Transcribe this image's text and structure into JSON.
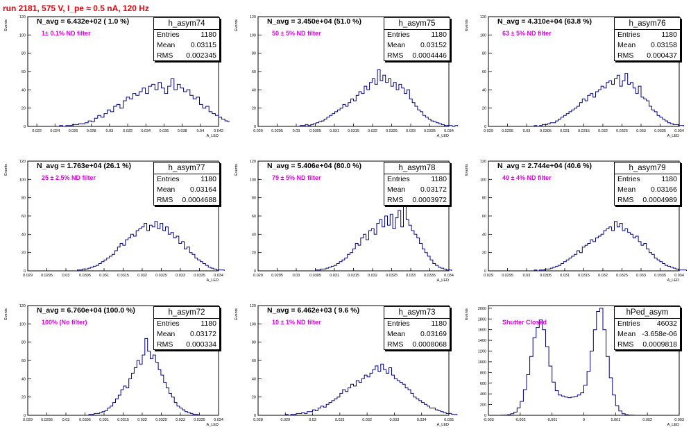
{
  "run_title": "run 2181,   575 V, I_pe ≈ 0.5 nA, 120 Hz",
  "stats_labels": {
    "entries": "Entries",
    "mean": "Mean",
    "rms": "RMS"
  },
  "panels": [
    {
      "hist_name": "h_asym74",
      "n_avg": "N_avg = 6.432e+02 ( 1.0 %)",
      "filter": "1± 0.1% ND filter",
      "entries": "1180",
      "mean": "0.03115",
      "rms": "0.002345",
      "ylabel": "Events",
      "xlabel": "A_LED"
    },
    {
      "hist_name": "h_asym75",
      "n_avg": "N_avg = 3.450e+04 (51.0 %)",
      "filter": "50 ± 5% ND filter",
      "entries": "1180",
      "mean": "0.03152",
      "rms": "0.0004446",
      "ylabel": "Events",
      "xlabel": "A_LED"
    },
    {
      "hist_name": "h_asym76",
      "n_avg": "N_avg = 4.310e+04 (63.8 %)",
      "filter": "63 ± 5% ND filter",
      "entries": "1180",
      "mean": "0.03158",
      "rms": "0.000437",
      "ylabel": "Events",
      "xlabel": "A_LED"
    },
    {
      "hist_name": "h_asym77",
      "n_avg": "N_avg = 1.763e+04 (26.1 %)",
      "filter": "25 ± 2.5% ND filter",
      "entries": "1180",
      "mean": "0.03164",
      "rms": "0.0004688",
      "ylabel": "Events",
      "xlabel": "A_LED"
    },
    {
      "hist_name": "h_asym78",
      "n_avg": "N_avg = 5.406e+04 (80.0 %)",
      "filter": "79 ± 5% ND filter",
      "entries": "1180",
      "mean": "0.03172",
      "rms": "0.0003972",
      "ylabel": "Events",
      "xlabel": "A_LED"
    },
    {
      "hist_name": "h_asym79",
      "n_avg": "N_avg = 2.744e+04 (40.6 %)",
      "filter": "40 ± 4% ND filter",
      "entries": "1180",
      "mean": "0.03166",
      "rms": "0.0004989",
      "ylabel": "Events",
      "xlabel": "A_LED"
    },
    {
      "hist_name": "h_asym72",
      "n_avg": "N_avg = 6.760e+04 (100.0 %)",
      "filter": "100% (No filter)",
      "entries": "1180",
      "mean": "0.03172",
      "rms": "0.000334",
      "ylabel": "Events",
      "xlabel": "A_LED"
    },
    {
      "hist_name": "h_asym73",
      "n_avg": "N_avg = 6.462e+03 ( 9.6 %)",
      "filter": "10 ± 1% ND filter",
      "entries": "1180",
      "mean": "0.03169",
      "rms": "0.0008068",
      "ylabel": "Events",
      "xlabel": "A_LED"
    },
    {
      "hist_name": "hPed_asym",
      "n_avg": "",
      "filter": "Shutter Closed",
      "entries": "46032",
      "mean": "-3.658e-06",
      "rms": "0.0009818",
      "ylabel": "Events",
      "xlabel": "A_LED"
    }
  ],
  "chart_data": [
    {
      "type": "histogram",
      "title": "h_asym74",
      "ylabel": "Events",
      "xlabel": "A_LED",
      "line_color": "#00007f",
      "xlim": [
        0.021,
        0.042
      ],
      "ylim": [
        0,
        120
      ],
      "xticks": [
        0.022,
        0.024,
        0.026,
        0.028,
        0.03,
        0.032,
        0.034,
        0.036,
        0.038,
        0.04,
        0.042
      ],
      "xtick_labels": [
        "0.022",
        "0.024",
        "0.026",
        "0.028",
        "0.03",
        "0.032",
        "0.034",
        "0.036",
        "0.038",
        "0.04",
        "0.042"
      ],
      "yticks": [
        0,
        20,
        40,
        60,
        80,
        100,
        120
      ],
      "bins": {
        "start": 0.0245,
        "width": 0.00035,
        "values": [
          1,
          0,
          1,
          1,
          2,
          2,
          3,
          3,
          4,
          6,
          5,
          9,
          12,
          10,
          14,
          18,
          16,
          22,
          24,
          20,
          28,
          32,
          30,
          36,
          34,
          38,
          42,
          36,
          44,
          46,
          40,
          48,
          42,
          36,
          44,
          52,
          40,
          46,
          42,
          38,
          40,
          34,
          30,
          32,
          24,
          20,
          22,
          16,
          14,
          12,
          10,
          8,
          6,
          5,
          4,
          3,
          2,
          2,
          1,
          1,
          1,
          0,
          1,
          0,
          0,
          1
        ]
      }
    },
    {
      "type": "histogram",
      "title": "h_asym75",
      "ylabel": "Events",
      "xlabel": "A_LED",
      "line_color": "#00007f",
      "xlim": [
        0.029,
        0.034
      ],
      "ylim": [
        0,
        120
      ],
      "xticks": [
        0.029,
        0.0295,
        0.03,
        0.0305,
        0.031,
        0.0315,
        0.032,
        0.0325,
        0.033,
        0.0335,
        0.034
      ],
      "xtick_labels": [
        "0.029",
        "0.0295",
        "0.03",
        "0.0305",
        "0.031",
        "0.0315",
        "0.032",
        "0.0325",
        "0.033",
        "0.0335",
        "0.034"
      ],
      "yticks": [
        0,
        20,
        40,
        60,
        80,
        100,
        120
      ],
      "bins": {
        "start": 0.0301,
        "width": 7e-05,
        "values": [
          1,
          1,
          2,
          1,
          2,
          3,
          4,
          5,
          6,
          8,
          10,
          12,
          14,
          16,
          18,
          20,
          24,
          22,
          26,
          30,
          28,
          34,
          38,
          36,
          44,
          40,
          48,
          52,
          46,
          62,
          50,
          56,
          48,
          52,
          44,
          48,
          40,
          46,
          42,
          36,
          40,
          30,
          26,
          22,
          18,
          16,
          12,
          10,
          8,
          6,
          5,
          4,
          3,
          2,
          1,
          1,
          1,
          0,
          1
        ]
      }
    },
    {
      "type": "histogram",
      "title": "h_asym76",
      "ylabel": "Events",
      "xlabel": "A_LED",
      "line_color": "#00007f",
      "xlim": [
        0.029,
        0.034
      ],
      "ylim": [
        0,
        120
      ],
      "xticks": [
        0.029,
        0.0295,
        0.03,
        0.0305,
        0.031,
        0.0315,
        0.032,
        0.0325,
        0.033,
        0.0335,
        0.034
      ],
      "xtick_labels": [
        "0.029",
        "0.0295",
        "0.03",
        "0.0305",
        "0.031",
        "0.0315",
        "0.032",
        "0.0325",
        "0.033",
        "0.0335",
        "0.034"
      ],
      "yticks": [
        0,
        20,
        40,
        60,
        80,
        100,
        120
      ],
      "bins": {
        "start": 0.0302,
        "width": 7e-05,
        "values": [
          1,
          0,
          1,
          2,
          2,
          3,
          4,
          4,
          6,
          8,
          10,
          12,
          14,
          16,
          18,
          20,
          22,
          26,
          30,
          28,
          34,
          36,
          32,
          38,
          40,
          44,
          42,
          48,
          50,
          46,
          52,
          56,
          44,
          50,
          58,
          46,
          48,
          42,
          36,
          44,
          32,
          30,
          28,
          22,
          18,
          16,
          12,
          10,
          8,
          6,
          4,
          3,
          2,
          2,
          1,
          1
        ]
      }
    },
    {
      "type": "histogram",
      "title": "h_asym77",
      "ylabel": "Events",
      "xlabel": "A_LED",
      "line_color": "#00007f",
      "xlim": [
        0.029,
        0.034
      ],
      "ylim": [
        0,
        120
      ],
      "xticks": [
        0.029,
        0.0295,
        0.03,
        0.0305,
        0.031,
        0.0315,
        0.032,
        0.0325,
        0.033,
        0.0335,
        0.034
      ],
      "xtick_labels": [
        "0.029",
        "0.0295",
        "0.03",
        "0.0305",
        "0.031",
        "0.0315",
        "0.032",
        "0.0325",
        "0.033",
        "0.0335",
        "0.034"
      ],
      "yticks": [
        0,
        20,
        40,
        60,
        80,
        100,
        120
      ],
      "bins": {
        "start": 0.0303,
        "width": 7e-05,
        "values": [
          1,
          1,
          2,
          2,
          3,
          4,
          5,
          6,
          8,
          10,
          12,
          14,
          16,
          18,
          22,
          26,
          30,
          28,
          34,
          36,
          40,
          38,
          44,
          46,
          48,
          52,
          44,
          50,
          48,
          54,
          46,
          52,
          44,
          48,
          40,
          42,
          36,
          38,
          30,
          32,
          24,
          26,
          20,
          18,
          14,
          12,
          10,
          8,
          6,
          4,
          3,
          2,
          1,
          1,
          1
        ]
      }
    },
    {
      "type": "histogram",
      "title": "h_asym78",
      "ylabel": "Events",
      "xlabel": "A_LED",
      "line_color": "#00007f",
      "xlim": [
        0.029,
        0.034
      ],
      "ylim": [
        0,
        120
      ],
      "xticks": [
        0.029,
        0.0295,
        0.03,
        0.0305,
        0.031,
        0.0315,
        0.032,
        0.0325,
        0.033,
        0.0335,
        0.034
      ],
      "xtick_labels": [
        "0.029",
        "0.0295",
        "0.03",
        "0.0305",
        "0.031",
        "0.0315",
        "0.032",
        "0.0325",
        "0.033",
        "0.0335",
        "0.034"
      ],
      "yticks": [
        0,
        20,
        40,
        60,
        80,
        100,
        120
      ],
      "bins": {
        "start": 0.0305,
        "width": 7e-05,
        "values": [
          1,
          1,
          2,
          2,
          3,
          4,
          5,
          6,
          8,
          10,
          12,
          14,
          18,
          20,
          24,
          30,
          28,
          36,
          40,
          34,
          44,
          46,
          40,
          52,
          56,
          48,
          60,
          50,
          62,
          46,
          58,
          66,
          48,
          74,
          56,
          50,
          44,
          40,
          36,
          30,
          24,
          20,
          16,
          12,
          8,
          6,
          4,
          3,
          2,
          1,
          1
        ]
      }
    },
    {
      "type": "histogram",
      "title": "h_asym79",
      "ylabel": "Events",
      "xlabel": "A_LED",
      "line_color": "#00007f",
      "xlim": [
        0.029,
        0.034
      ],
      "ylim": [
        0,
        120
      ],
      "xticks": [
        0.029,
        0.0295,
        0.03,
        0.0305,
        0.031,
        0.0315,
        0.032,
        0.0325,
        0.033,
        0.0335,
        0.034
      ],
      "xtick_labels": [
        "0.029",
        "0.0295",
        "0.03",
        "0.0305",
        "0.031",
        "0.0315",
        "0.032",
        "0.0325",
        "0.033",
        "0.0335",
        "0.034"
      ],
      "yticks": [
        0,
        20,
        40,
        60,
        80,
        100,
        120
      ],
      "bins": {
        "start": 0.0302,
        "width": 7e-05,
        "values": [
          1,
          0,
          1,
          1,
          2,
          2,
          3,
          4,
          5,
          6,
          8,
          10,
          12,
          14,
          16,
          18,
          22,
          20,
          26,
          28,
          30,
          34,
          32,
          36,
          38,
          40,
          44,
          46,
          48,
          44,
          54,
          48,
          52,
          44,
          46,
          42,
          40,
          36,
          38,
          32,
          28,
          30,
          24,
          20,
          18,
          14,
          12,
          10,
          8,
          6,
          5,
          4,
          3,
          2,
          1,
          1,
          1
        ]
      }
    },
    {
      "type": "histogram",
      "title": "h_asym72",
      "ylabel": "Events",
      "xlabel": "A_LED",
      "line_color": "#00007f",
      "xlim": [
        0.029,
        0.034
      ],
      "ylim": [
        0,
        120
      ],
      "xticks": [
        0.029,
        0.0295,
        0.03,
        0.0305,
        0.031,
        0.0315,
        0.032,
        0.0325,
        0.033,
        0.0335,
        0.034
      ],
      "xtick_labels": [
        "0.029",
        "0.0295",
        "0.03",
        "0.0305",
        "0.031",
        "0.0315",
        "0.032",
        "0.0325",
        "0.033",
        "0.0335",
        "0.034"
      ],
      "yticks": [
        0,
        20,
        40,
        60,
        80,
        100,
        120
      ],
      "bins": {
        "start": 0.0306,
        "width": 7e-05,
        "values": [
          1,
          1,
          2,
          2,
          3,
          4,
          5,
          8,
          10,
          14,
          18,
          22,
          28,
          32,
          30,
          40,
          46,
          52,
          60,
          56,
          66,
          84,
          70,
          62,
          66,
          58,
          50,
          44,
          36,
          30,
          24,
          20,
          14,
          10,
          8,
          6,
          4,
          3,
          2,
          1,
          1
        ]
      }
    },
    {
      "type": "histogram",
      "title": "h_asym73",
      "ylabel": "Events",
      "xlabel": "A_LED",
      "line_color": "#00007f",
      "xlim": [
        0.028,
        0.035
      ],
      "ylim": [
        0,
        120
      ],
      "xticks": [
        0.028,
        0.029,
        0.03,
        0.031,
        0.032,
        0.033,
        0.034,
        0.035
      ],
      "xtick_labels": [
        "0.028",
        "0.029",
        "0.03",
        "0.031",
        "0.032",
        "0.033",
        "0.034",
        "0.035"
      ],
      "yticks": [
        0,
        20,
        40,
        60,
        80,
        100,
        120
      ],
      "bins": {
        "start": 0.029,
        "width": 0.0001,
        "values": [
          1,
          0,
          1,
          1,
          2,
          2,
          3,
          2,
          4,
          4,
          6,
          5,
          8,
          10,
          9,
          12,
          14,
          16,
          18,
          20,
          24,
          28,
          26,
          30,
          34,
          32,
          38,
          36,
          40,
          44,
          42,
          46,
          50,
          54,
          48,
          56,
          50,
          46,
          52,
          44,
          40,
          38,
          36,
          34,
          30,
          28,
          24,
          20,
          18,
          16,
          14,
          12,
          10,
          8,
          8,
          6,
          5,
          4,
          3,
          2,
          2,
          1,
          1
        ]
      }
    },
    {
      "type": "histogram",
      "title": "hPed_asym",
      "ylabel": "Events",
      "xlabel": "A_LED",
      "line_color": "#00007f",
      "xlim": [
        -0.003,
        0.003
      ],
      "ylim": [
        0,
        2050
      ],
      "xticks": [
        -0.003,
        -0.002,
        -0.001,
        0,
        0.001,
        0.002,
        0.003
      ],
      "xtick_labels": [
        "-0.003",
        "-0.002",
        "-0.001",
        "0",
        "0.001",
        "0.002",
        "0.003"
      ],
      "yticks": [
        0,
        200,
        400,
        600,
        800,
        1000,
        1200,
        1400,
        1600,
        1800,
        2000
      ],
      "bins": {
        "start": -0.0026,
        "width": 0.0001,
        "values": [
          2,
          5,
          12,
          30,
          60,
          140,
          260,
          480,
          760,
          1100,
          1450,
          1640,
          1780,
          1600,
          1280,
          920,
          620,
          460,
          380,
          360,
          340,
          330,
          340,
          350,
          380,
          420,
          560,
          820,
          1200,
          1600,
          1940,
          2000,
          1600,
          1100,
          700,
          380,
          180,
          80,
          30,
          12,
          5,
          2
        ]
      }
    }
  ]
}
